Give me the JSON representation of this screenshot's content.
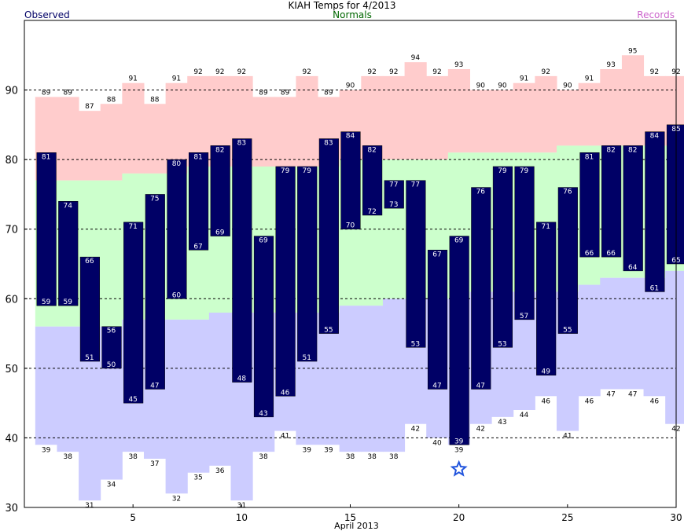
{
  "chart_data": {
    "type": "bar",
    "title": "KIAH Temps for 4/2013",
    "xlabel": "April 2013",
    "ylabel": "",
    "ylim": [
      30,
      100
    ],
    "xlim": [
      0.5,
      30.5
    ],
    "yticks": [
      30,
      40,
      50,
      60,
      70,
      80,
      90
    ],
    "xticks": [
      5,
      10,
      15,
      20,
      25,
      30
    ],
    "dashed_gridlines": [
      40,
      50,
      60,
      70,
      80,
      90
    ],
    "legend": {
      "placement": "top",
      "observed": "Observed",
      "normals": "Normals",
      "records": "Records"
    },
    "colors": {
      "observed": "#000066",
      "observed_legend": "#000066",
      "normals_legend": "#006600",
      "records_legend": "#cc66cc",
      "record_high_band": "#ffcccc",
      "normal_band": "#ccffcc",
      "record_low_band": "#ccccff",
      "observed_label": "#ffffff"
    },
    "days": [
      1,
      2,
      3,
      4,
      5,
      6,
      7,
      8,
      9,
      10,
      11,
      12,
      13,
      14,
      15,
      16,
      17,
      18,
      19,
      20,
      21,
      22,
      23,
      24,
      25,
      26,
      27,
      28,
      29,
      30
    ],
    "record_high": [
      89,
      89,
      87,
      88,
      91,
      88,
      91,
      92,
      92,
      92,
      89,
      89,
      92,
      89,
      90,
      92,
      92,
      94,
      92,
      93,
      90,
      90,
      91,
      92,
      90,
      91,
      93,
      95,
      92,
      92
    ],
    "normal_high": [
      77,
      77,
      77,
      77,
      78,
      78,
      78,
      79,
      79,
      79,
      79,
      79,
      79,
      79,
      80,
      80,
      80,
      80,
      80,
      81,
      81,
      81,
      81,
      81,
      82,
      82,
      82,
      82,
      82,
      82
    ],
    "normal_low": [
      56,
      56,
      56,
      56,
      57,
      57,
      57,
      57,
      58,
      58,
      58,
      58,
      58,
      58,
      59,
      59,
      60,
      60,
      60,
      60,
      61,
      61,
      61,
      61,
      61,
      62,
      63,
      63,
      63,
      64
    ],
    "record_low": [
      39,
      38,
      31,
      34,
      38,
      37,
      32,
      35,
      36,
      31,
      38,
      41,
      39,
      39,
      38,
      38,
      38,
      42,
      40,
      39,
      42,
      43,
      44,
      46,
      41,
      46,
      47,
      47,
      46,
      42
    ],
    "observed_high": [
      81,
      74,
      66,
      56,
      71,
      75,
      80,
      81,
      82,
      83,
      69,
      79,
      79,
      83,
      84,
      82,
      77,
      77,
      67,
      69,
      76,
      79,
      79,
      71,
      76,
      81,
      82,
      82,
      84,
      85
    ],
    "observed_low": [
      59,
      59,
      51,
      50,
      45,
      47,
      60,
      67,
      69,
      48,
      43,
      46,
      51,
      55,
      70,
      72,
      73,
      53,
      47,
      39,
      47,
      53,
      57,
      49,
      55,
      66,
      66,
      64,
      61,
      65
    ],
    "record_marker": {
      "day": 20,
      "symbol": "star",
      "type": "record low"
    }
  }
}
